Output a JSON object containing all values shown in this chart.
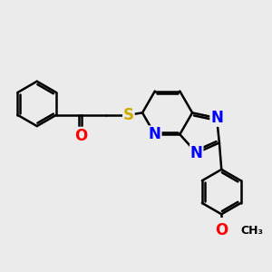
{
  "background_color": "#ebebeb",
  "bond_color": "#000000",
  "bond_width": 1.8,
  "atom_colors": {
    "N": "#0000ff",
    "O": "#ff0000",
    "S": "#ccaa00",
    "C": "#000000"
  },
  "font_size": 11,
  "fig_width": 3.0,
  "fig_height": 3.0,
  "dpi": 100
}
